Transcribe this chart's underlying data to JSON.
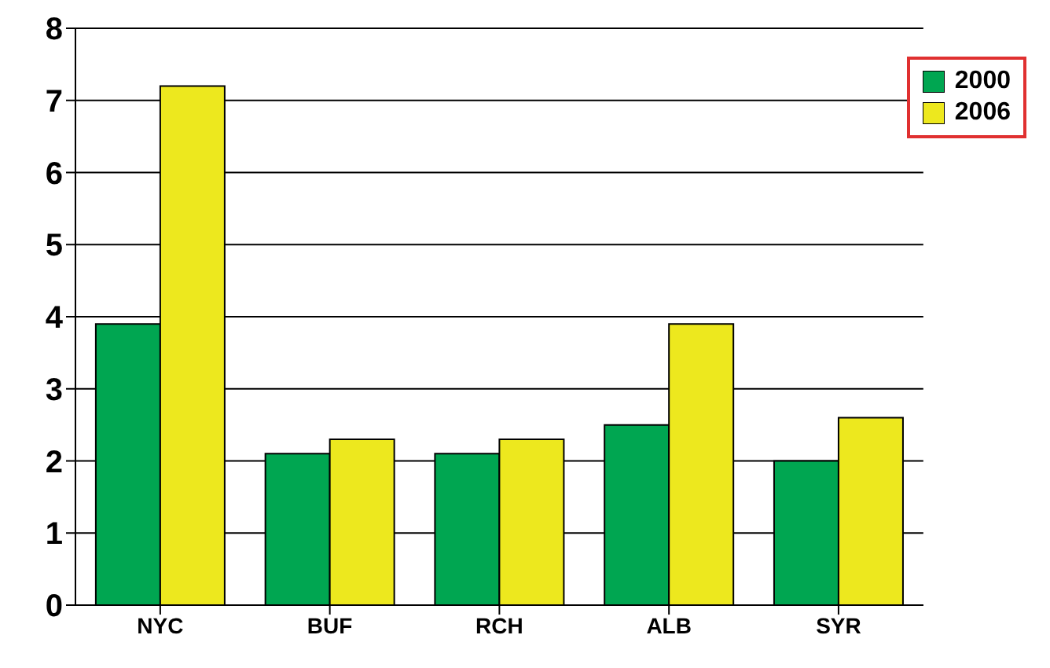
{
  "chart_data": {
    "type": "bar",
    "categories": [
      "NYC",
      "BUF",
      "RCH",
      "ALB",
      "SYR"
    ],
    "series": [
      {
        "name": "2000",
        "color": "#00a651",
        "values": [
          3.9,
          2.1,
          2.1,
          2.5,
          2.0
        ]
      },
      {
        "name": "2006",
        "color": "#ede81e",
        "values": [
          7.2,
          2.3,
          2.3,
          3.9,
          2.6
        ]
      }
    ],
    "ylim": [
      0,
      8
    ],
    "yticks": [
      0,
      1,
      2,
      3,
      4,
      5,
      6,
      7,
      8
    ],
    "grid": "y",
    "legend": "top right"
  }
}
